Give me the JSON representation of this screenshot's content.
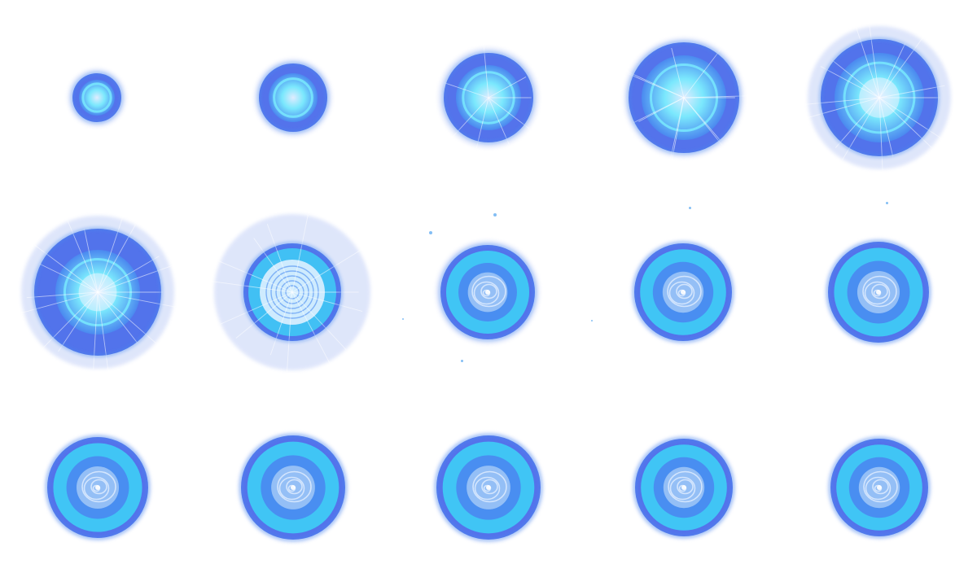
{
  "sheet": {
    "background": "#ffffff",
    "palette": {
      "core": "#7ff5ff",
      "ring_bright": "#3fc9f5",
      "ring_mid": "#4a8bf0",
      "ring_dark": "#3a5ee8",
      "halo": "#b8c8f6",
      "swirl": "#e8f2ff"
    },
    "frames": [
      {
        "id": 1,
        "phase": "charge"
      },
      {
        "id": 2,
        "phase": "charge"
      },
      {
        "id": 3,
        "phase": "charge"
      },
      {
        "id": 4,
        "phase": "charge"
      },
      {
        "id": 5,
        "phase": "burst"
      },
      {
        "id": 6,
        "phase": "burst"
      },
      {
        "id": 7,
        "phase": "burst"
      },
      {
        "id": 8,
        "phase": "loop"
      },
      {
        "id": 9,
        "phase": "loop"
      },
      {
        "id": 10,
        "phase": "loop"
      },
      {
        "id": 11,
        "phase": "loop"
      },
      {
        "id": 12,
        "phase": "loop"
      },
      {
        "id": 13,
        "phase": "loop"
      },
      {
        "id": 14,
        "phase": "loop"
      },
      {
        "id": 15,
        "phase": "loop"
      }
    ]
  }
}
